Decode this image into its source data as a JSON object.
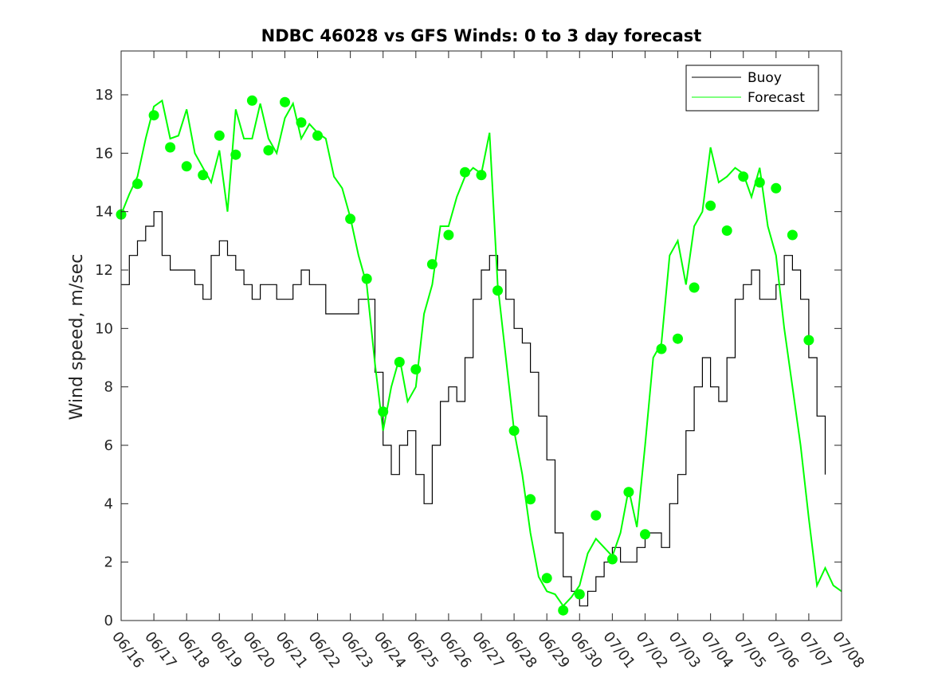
{
  "chart_data": {
    "type": "line",
    "title": "NDBC 46028 vs GFS Winds: 0 to 3 day forecast",
    "xlabel": "",
    "ylabel": "Wind speed, m/sec",
    "x_tick_labels": [
      "06/16",
      "06/17",
      "06/18",
      "06/19",
      "06/20",
      "06/21",
      "06/22",
      "06/23",
      "06/24",
      "06/25",
      "06/26",
      "06/27",
      "06/28",
      "06/29",
      "06/30",
      "07/01",
      "07/02",
      "07/03",
      "07/04",
      "07/05",
      "07/06",
      "07/07",
      "07/08"
    ],
    "xlim_days": [
      0,
      22
    ],
    "ylim": [
      0,
      19.5
    ],
    "y_ticks": [
      0,
      2,
      4,
      6,
      8,
      10,
      12,
      14,
      16,
      18
    ],
    "grid": false,
    "legend_position": "top-right",
    "series": [
      {
        "name": "Buoy",
        "color": "#000000",
        "x": [
          0.0,
          0.25,
          0.5,
          0.75,
          1.0,
          1.25,
          1.5,
          1.75,
          2.0,
          2.25,
          2.5,
          2.75,
          3.0,
          3.25,
          3.5,
          3.75,
          4.0,
          4.25,
          4.5,
          4.75,
          5.0,
          5.25,
          5.5,
          5.75,
          6.0,
          6.25,
          6.5,
          6.75,
          7.0,
          7.25,
          7.5,
          7.75,
          8.0,
          8.25,
          8.5,
          8.75,
          9.0,
          9.25,
          9.5,
          9.75,
          10.0,
          10.25,
          10.5,
          10.75,
          11.0,
          11.25,
          11.5,
          11.75,
          12.0,
          12.25,
          12.5,
          12.75,
          13.0,
          13.25,
          13.5,
          13.75,
          14.0,
          14.25,
          14.5,
          14.75,
          15.0,
          15.25,
          15.5,
          15.75,
          16.0,
          16.25,
          16.5,
          16.75,
          17.0,
          17.25,
          17.5,
          17.75,
          18.0,
          18.25,
          18.5,
          18.75,
          19.0,
          19.25,
          19.5,
          19.75,
          20.0,
          20.25,
          20.5,
          20.75,
          21.0,
          21.25,
          21.5
        ],
        "values": [
          11.5,
          12.5,
          13,
          13.5,
          14,
          12.5,
          12,
          12,
          12,
          11.5,
          11,
          12.5,
          13,
          12.5,
          12,
          11.5,
          11,
          11.5,
          11.5,
          11,
          11,
          11.5,
          12,
          11.5,
          11.5,
          10.5,
          10.5,
          10.5,
          10.5,
          11,
          11,
          8.5,
          6,
          5,
          6,
          6.5,
          5,
          4,
          6,
          7.5,
          8,
          7.5,
          9,
          11,
          12,
          12.5,
          12,
          11,
          10,
          9.5,
          8.5,
          7,
          5.5,
          3,
          1.5,
          1,
          0.5,
          1,
          1.5,
          2,
          2.5,
          2,
          2,
          2.5,
          3,
          3,
          2.5,
          4,
          5,
          6.5,
          8,
          9,
          8,
          7.5,
          9,
          11,
          11.5,
          12,
          11,
          11,
          11.5,
          12.5,
          12,
          11,
          9,
          7,
          5
        ]
      },
      {
        "name": "Forecast",
        "color": "#00ff00",
        "x": [
          0.0,
          0.25,
          0.5,
          0.75,
          1.0,
          1.25,
          1.5,
          1.75,
          2.0,
          2.25,
          2.5,
          2.75,
          3.0,
          3.25,
          3.5,
          3.75,
          4.0,
          4.25,
          4.5,
          4.75,
          5.0,
          5.25,
          5.5,
          5.75,
          6.0,
          6.25,
          6.5,
          6.75,
          7.0,
          7.25,
          7.5,
          7.75,
          8.0,
          8.25,
          8.5,
          8.75,
          9.0,
          9.25,
          9.5,
          9.75,
          10.0,
          10.25,
          10.5,
          10.75,
          11.0,
          11.25,
          11.5,
          11.75,
          12.0,
          12.25,
          12.5,
          12.75,
          13.0,
          13.25,
          13.5,
          13.75,
          14.0,
          14.25,
          14.5,
          14.75,
          15.0,
          15.25,
          15.5,
          15.75,
          16.0,
          16.25,
          16.5,
          16.75,
          17.0,
          17.25,
          17.5,
          17.75,
          18.0,
          18.25,
          18.5,
          18.75,
          19.0,
          19.25,
          19.5,
          19.75,
          20.0,
          20.25,
          20.5,
          20.75,
          21.0,
          21.25,
          21.5,
          21.75,
          22.0
        ],
        "values": [
          13.9,
          14.6,
          15.2,
          16.5,
          17.6,
          17.8,
          16.5,
          16.6,
          17.5,
          16.0,
          15.5,
          15.0,
          16.1,
          14.0,
          17.5,
          16.5,
          16.5,
          17.7,
          16.5,
          16.0,
          17.2,
          17.7,
          16.5,
          17.0,
          16.7,
          16.5,
          15.2,
          14.8,
          13.8,
          12.5,
          11.5,
          8.8,
          6.5,
          8.0,
          9.0,
          7.5,
          8.0,
          10.5,
          11.5,
          13.5,
          13.5,
          14.5,
          15.2,
          15.5,
          15.3,
          16.7,
          11.5,
          9.0,
          6.5,
          5.0,
          3.0,
          1.5,
          1.0,
          0.9,
          0.5,
          0.8,
          1.2,
          2.3,
          2.8,
          2.5,
          2.2,
          3.0,
          4.5,
          3.2,
          6.0,
          9.0,
          9.5,
          12.5,
          13.0,
          11.5,
          13.5,
          14.0,
          16.2,
          15.0,
          15.2,
          15.5,
          15.3,
          14.5,
          15.5,
          13.5,
          12.5,
          10.0,
          8.0,
          6.0,
          3.5,
          1.2,
          1.8,
          1.2,
          1.0
        ]
      }
    ],
    "forecast_markers": {
      "x": [
        0.0,
        0.5,
        1.0,
        1.5,
        2.0,
        2.5,
        3.0,
        3.5,
        4.0,
        4.5,
        5.0,
        5.5,
        6.0,
        7.0,
        7.5,
        8.0,
        8.5,
        9.0,
        9.5,
        10.0,
        10.5,
        11.0,
        11.5,
        12.0,
        12.5,
        13.0,
        13.5,
        14.0,
        14.5,
        15.0,
        15.5,
        16.0,
        16.5,
        17.0,
        17.5,
        18.0,
        18.5,
        19.0,
        19.5,
        20.0,
        20.5,
        21.0
      ],
      "values": [
        13.9,
        14.95,
        17.3,
        16.2,
        15.55,
        15.25,
        16.6,
        15.95,
        17.8,
        16.1,
        17.75,
        17.05,
        16.6,
        13.75,
        11.7,
        7.15,
        8.85,
        8.6,
        12.2,
        13.2,
        15.35,
        15.25,
        11.3,
        6.5,
        4.15,
        1.45,
        0.35,
        0.9,
        3.6,
        2.1,
        4.4,
        2.95,
        9.3,
        9.65,
        11.4,
        14.2,
        13.35,
        15.2,
        15.0,
        14.8,
        13.2,
        9.6
      ]
    }
  }
}
